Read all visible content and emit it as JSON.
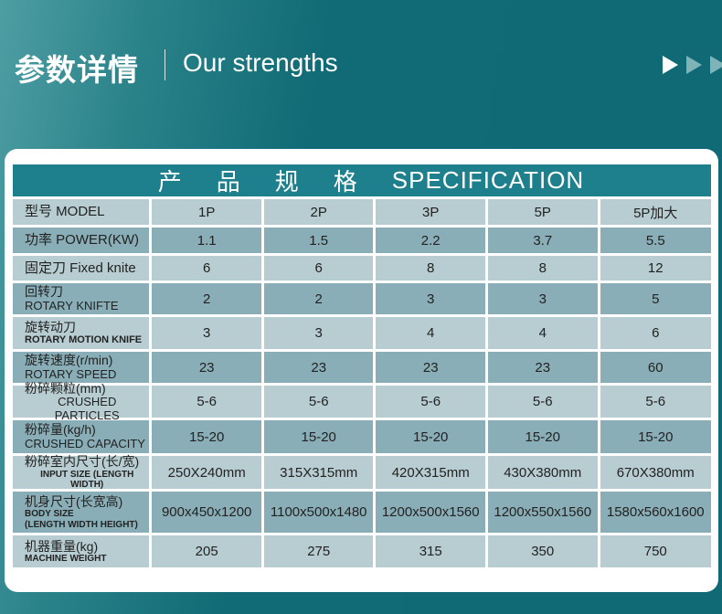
{
  "header": {
    "title_cn": "参数详情",
    "title_en": "Our strengths"
  },
  "colors": {
    "background": "#0f6a75",
    "table_header": "#1e808c",
    "row_light": "#b7cdd2",
    "row_dark": "#89aeb7"
  },
  "table": {
    "title_cn": "产品规格",
    "title_en": "SPECIFICATION",
    "rows": [
      {
        "label": "型号 MODEL",
        "sub": "",
        "values": [
          "1P",
          "2P",
          "3P",
          "5P",
          "5P加大"
        ]
      },
      {
        "label": "功率 POWER(KW)",
        "sub": "",
        "values": [
          "1.1",
          "1.5",
          "2.2",
          "3.7",
          "5.5"
        ]
      },
      {
        "label": "固定刀 Fixed knite",
        "sub": "",
        "values": [
          "6",
          "6",
          "8",
          "8",
          "12"
        ]
      },
      {
        "label": "回转刀",
        "sub": "ROTARY KNIFTE",
        "values": [
          "2",
          "2",
          "3",
          "3",
          "5"
        ]
      },
      {
        "label": "旋转动刀",
        "sub": "ROTARY MOTION KNIFE",
        "values": [
          "3",
          "3",
          "4",
          "4",
          "6"
        ]
      },
      {
        "label": "旋转速度(r/min)",
        "sub": "ROTARY SPEED",
        "values": [
          "23",
          "23",
          "23",
          "23",
          "60"
        ]
      },
      {
        "label": "粉碎颗粒(mm)",
        "sub": "CRUSHED PARTICLES",
        "values": [
          "5-6",
          "5-6",
          "5-6",
          "5-6",
          "5-6"
        ]
      },
      {
        "label": "粉碎量(kg/h)",
        "sub": "CRUSHED CAPACITY",
        "values": [
          "15-20",
          "15-20",
          "15-20",
          "15-20",
          "15-20"
        ]
      },
      {
        "label": "粉碎室内尺寸(长/宽)",
        "sub": "INPUT SIZE (LENGTH WIDTH)",
        "values": [
          "250X240mm",
          "315X315mm",
          "420X315mm",
          "430X380mm",
          "670X380mm"
        ]
      },
      {
        "label": "机身尺寸(长宽高)",
        "sub": "BODY SIZE",
        "sub2": "(LENGTH WIDTH HEIGHT)",
        "values": [
          "900x450x1200",
          "1100x500x1480",
          "1200x500x1560",
          "1200x550x1560",
          "1580x560x1600"
        ]
      },
      {
        "label": "机器重量(kg)",
        "sub": "MACHINE WEIGHT",
        "values": [
          "205",
          "275",
          "315",
          "350",
          "750"
        ]
      }
    ]
  }
}
